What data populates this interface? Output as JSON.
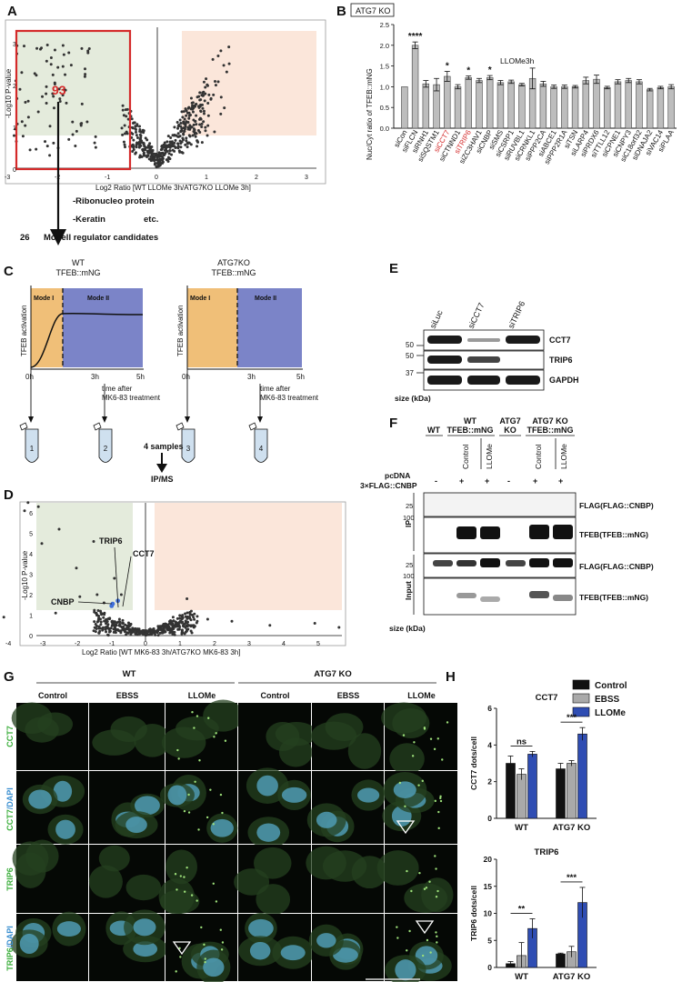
{
  "panels": {
    "A": {
      "letter": "A",
      "highlight_count": "93",
      "ylabel": "-Log10 P-value",
      "xlabel": "Log2 Ratio [WT LLOMe 3h/ATG7KO LLOMe 3h]",
      "x_ticks": [
        "-3",
        "-2",
        "-1",
        "0",
        "1",
        "2",
        "3"
      ],
      "y_ticks": [
        "0",
        "1",
        "2",
        "3"
      ],
      "categories": [
        "-Ribonucleo protein",
        "-Keratin",
        "etc."
      ],
      "result_count": "26",
      "result_text": "Modell regulator candidates"
    },
    "B": {
      "letter": "B",
      "boxed_title": "ATG7 KO",
      "annotation": "LLOMe3h",
      "ylabel": "Nuc/Cyt ratio of TFEB::mNG",
      "y_ticks": [
        "0.0",
        "0.5",
        "1.0",
        "1.5",
        "2.0",
        "2.5"
      ]
    },
    "C": {
      "letter": "C",
      "left_title_1": "WT",
      "left_title_2": "TFEB::mNG",
      "right_title_1": "ATG7KO",
      "right_title_2": "TFEB::mNG",
      "ylabel": "TFEB activation",
      "mode1": "Mode I",
      "mode2": "Mode II",
      "t0": "0h",
      "t3": "3h",
      "t5": "5h",
      "time_after_1": "time after",
      "time_after_2": "MK6-83 treatment",
      "tubes": [
        "1",
        "2",
        "3",
        "4"
      ],
      "samples": "4 samples",
      "ipms": "IP/MS"
    },
    "D": {
      "letter": "D",
      "ylabel": "-Log10 P-value",
      "xlabel": "Log2 Ratio [WT MK6-83 3h/ATG7KO MK6-83 3h]",
      "x_ticks": [
        "-4",
        "-3",
        "-2",
        "-1",
        "0",
        "1",
        "2",
        "3",
        "4",
        "5"
      ],
      "y_ticks": [
        "0",
        "1",
        "2",
        "3",
        "4",
        "5",
        "6"
      ],
      "labels": [
        "TRIP6",
        "CCT7",
        "CNBP"
      ]
    },
    "E": {
      "letter": "E",
      "lanes": [
        "siLuc",
        "siCCT7",
        "siTRIP6"
      ],
      "bands": [
        "CCT7",
        "TRIP6",
        "GAPDH"
      ],
      "markers": [
        "50",
        "50",
        "37"
      ],
      "size_label": "size (kDa)"
    },
    "F": {
      "letter": "F",
      "groups": [
        "WT",
        "WT\nTFEB::mNG",
        "ATG7\nKO",
        "ATG7 KO\nTFEB::mNG"
      ],
      "group_line1": [
        "WT",
        "WT",
        "ATG7",
        "ATG7 KO"
      ],
      "group_line2": [
        "",
        "TFEB::mNG",
        "KO",
        "TFEB::mNG"
      ],
      "conditions": [
        "Control",
        "LLOMe",
        "Control",
        "LLOMe"
      ],
      "pcdna": "pcDNA",
      "flag_row": "3×FLAG::CNBP",
      "signs": [
        "-",
        "+",
        "+",
        "-",
        "+",
        "+"
      ],
      "ip": "IP",
      "input": "Input",
      "markers": [
        "25",
        "100",
        "25",
        "100"
      ],
      "blots": [
        "FLAG(FLAG::CNBP)",
        "TFEB(TFEB::mNG)",
        "FLAG(FLAG::CNBP)",
        "TFEB(TFEB::mNG)"
      ],
      "size_label": "size (kDa)"
    },
    "G": {
      "letter": "G",
      "group_wt": "WT",
      "group_ko": "ATG7 KO",
      "columns": [
        "Control",
        "EBSS",
        "LLOMe",
        "Control",
        "EBSS",
        "LLOMe"
      ],
      "rows": [
        "CCT7",
        "CCT7/DAPI",
        "TRIP6",
        "TRIP6/DAPI"
      ],
      "row_main": [
        "CCT7",
        "CCT7",
        "TRIP6",
        "TRIP6"
      ],
      "row_suffix": [
        "",
        "/DAPI",
        "",
        "/DAPI"
      ]
    },
    "H": {
      "letter": "H",
      "legend": [
        "Control",
        "EBSS",
        "LLOMe"
      ],
      "colors": [
        "#111111",
        "#a9a9a9",
        "#2f4db3"
      ]
    }
  },
  "chart_data": [
    {
      "type": "bar",
      "title": "CCT7",
      "ylabel": "CCT7 dots/cell",
      "categories": [
        "WT",
        "ATG7 KO"
      ],
      "series": [
        {
          "name": "Control",
          "values": [
            3.0,
            2.7
          ],
          "errors": [
            0.4,
            0.3
          ]
        },
        {
          "name": "EBSS",
          "values": [
            2.4,
            3.0
          ],
          "errors": [
            0.3,
            0.15
          ]
        },
        {
          "name": "LLOMe",
          "values": [
            3.5,
            4.6
          ],
          "errors": [
            0.15,
            0.35
          ]
        }
      ],
      "ylim": [
        0,
        6
      ],
      "y_ticks": [
        "0",
        "2",
        "4",
        "6"
      ],
      "significance": [
        "ns",
        "***"
      ]
    },
    {
      "type": "bar",
      "title": "TRIP6",
      "ylabel": "TRIP6 dots/cell",
      "categories": [
        "WT",
        "ATG7 KO"
      ],
      "series": [
        {
          "name": "Control",
          "values": [
            0.7,
            2.5
          ],
          "errors": [
            0.4,
            0.15
          ]
        },
        {
          "name": "EBSS",
          "values": [
            2.2,
            2.9
          ],
          "errors": [
            2.4,
            1.0
          ]
        },
        {
          "name": "LLOMe",
          "values": [
            7.2,
            12.0
          ],
          "errors": [
            1.8,
            2.8
          ]
        }
      ],
      "ylim": [
        0,
        20
      ],
      "y_ticks": [
        "0",
        "5",
        "10",
        "15",
        "20"
      ],
      "significance": [
        "**",
        "***"
      ]
    },
    {
      "type": "bar",
      "title": "",
      "ylabel": "Nuc/Cyt ratio of TFEB::mNG",
      "ylim": [
        0,
        2.5
      ],
      "categories": [
        "siCon",
        "siFLCN",
        "siRNH1",
        "siSQSTM1",
        "siCCT7",
        "siCTNND1",
        "siTRIP6",
        "siZC3HAV1",
        "siCNBP",
        "siSMS",
        "siCSRP1",
        "siRUVBL1",
        "siCRNKL1",
        "siPPP2CA",
        "siABCE1",
        "siPPP2R1A",
        "siTSN",
        "siLARP4",
        "siPRDX6",
        "siTTLL12",
        "siCPNE1",
        "siCNPY3",
        "siC18orf32",
        "siDNAJA2",
        "siVAC14",
        "siPLAA"
      ],
      "red_categories": [
        "siCCT7",
        "siTRIP6"
      ],
      "values": [
        1.0,
        2.0,
        1.07,
        1.05,
        1.25,
        1.0,
        1.22,
        1.15,
        1.22,
        1.1,
        1.12,
        1.05,
        1.2,
        1.07,
        1.0,
        1.0,
        1.0,
        1.15,
        1.18,
        0.98,
        1.12,
        1.15,
        1.12,
        0.93,
        0.98,
        1.0
      ],
      "errors": [
        0.0,
        0.08,
        0.08,
        0.15,
        0.12,
        0.05,
        0.04,
        0.05,
        0.05,
        0.05,
        0.04,
        0.03,
        0.25,
        0.06,
        0.04,
        0.04,
        0.03,
        0.08,
        0.1,
        0.03,
        0.05,
        0.05,
        0.05,
        0.03,
        0.03,
        0.05
      ],
      "stars": [
        "",
        "****",
        "",
        "",
        "*",
        "",
        "*",
        "",
        "*",
        "",
        "",
        "",
        "",
        "",
        "",
        "",
        "",
        "",
        "",
        "",
        "",
        "",
        "",
        "",
        "",
        ""
      ]
    }
  ]
}
